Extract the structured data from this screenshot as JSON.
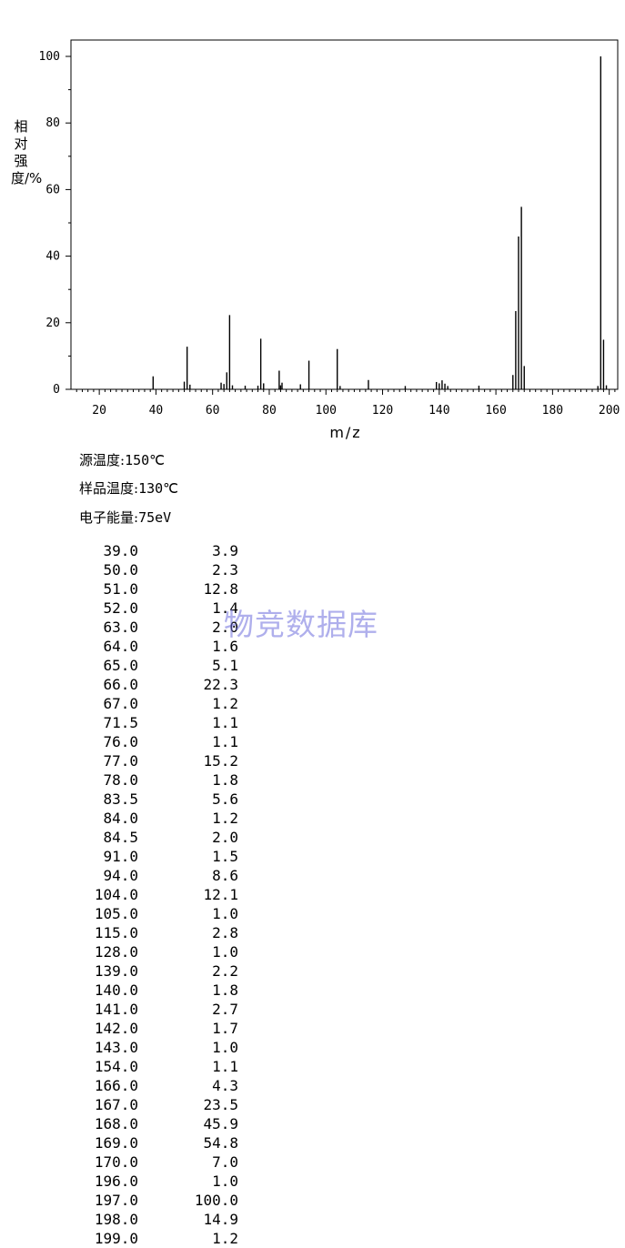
{
  "chart_data": {
    "type": "bar",
    "xlabel": "m/z",
    "ylabel": "相对强度/%",
    "xlim": [
      10,
      203
    ],
    "ylim": [
      0,
      105
    ],
    "xticks": [
      20,
      40,
      60,
      80,
      100,
      120,
      140,
      160,
      180,
      200
    ],
    "yticks": [
      0,
      20,
      40,
      60,
      80,
      100
    ],
    "grid": false,
    "peaks": [
      {
        "mz": "39.0",
        "abundance": "3.9"
      },
      {
        "mz": "50.0",
        "abundance": "2.3"
      },
      {
        "mz": "51.0",
        "abundance": "12.8"
      },
      {
        "mz": "52.0",
        "abundance": "1.4"
      },
      {
        "mz": "63.0",
        "abundance": "2.0"
      },
      {
        "mz": "64.0",
        "abundance": "1.6"
      },
      {
        "mz": "65.0",
        "abundance": "5.1"
      },
      {
        "mz": "66.0",
        "abundance": "22.3"
      },
      {
        "mz": "67.0",
        "abundance": "1.2"
      },
      {
        "mz": "71.5",
        "abundance": "1.1"
      },
      {
        "mz": "76.0",
        "abundance": "1.1"
      },
      {
        "mz": "77.0",
        "abundance": "15.2"
      },
      {
        "mz": "78.0",
        "abundance": "1.8"
      },
      {
        "mz": "83.5",
        "abundance": "5.6"
      },
      {
        "mz": "84.0",
        "abundance": "1.2"
      },
      {
        "mz": "84.5",
        "abundance": "2.0"
      },
      {
        "mz": "91.0",
        "abundance": "1.5"
      },
      {
        "mz": "94.0",
        "abundance": "8.6"
      },
      {
        "mz": "104.0",
        "abundance": "12.1"
      },
      {
        "mz": "105.0",
        "abundance": "1.0"
      },
      {
        "mz": "115.0",
        "abundance": "2.8"
      },
      {
        "mz": "128.0",
        "abundance": "1.0"
      },
      {
        "mz": "139.0",
        "abundance": "2.2"
      },
      {
        "mz": "140.0",
        "abundance": "1.8"
      },
      {
        "mz": "141.0",
        "abundance": "2.7"
      },
      {
        "mz": "142.0",
        "abundance": "1.7"
      },
      {
        "mz": "143.0",
        "abundance": "1.0"
      },
      {
        "mz": "154.0",
        "abundance": "1.1"
      },
      {
        "mz": "166.0",
        "abundance": "4.3"
      },
      {
        "mz": "167.0",
        "abundance": "23.5"
      },
      {
        "mz": "168.0",
        "abundance": "45.9"
      },
      {
        "mz": "169.0",
        "abundance": "54.8"
      },
      {
        "mz": "170.0",
        "abundance": "7.0"
      },
      {
        "mz": "196.0",
        "abundance": "1.0"
      },
      {
        "mz": "197.0",
        "abundance": "100.0"
      },
      {
        "mz": "198.0",
        "abundance": "14.9"
      },
      {
        "mz": "199.0",
        "abundance": "1.2"
      }
    ]
  },
  "conditions": {
    "source_temp_label": "源温度:",
    "source_temp_value": "150℃",
    "sample_temp_label": "样品温度:",
    "sample_temp_value": "130℃",
    "electron_energy_label": "电子能量:",
    "electron_energy_value": "75eV"
  },
  "watermark": "物竞数据库"
}
